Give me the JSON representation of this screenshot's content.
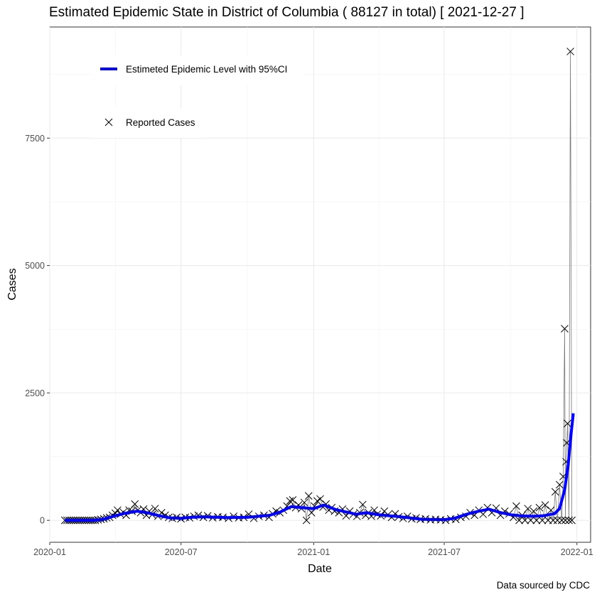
{
  "chart_data": {
    "type": "line",
    "title": "Estimated Epidemic State in District of Columbia ( 88127 in total)  [ 2021-12-27 ]",
    "xlabel": "Date",
    "ylabel": "Cases",
    "caption": "Data sourced by CDC",
    "grid": true,
    "legend_position": "top-left",
    "legend": [
      {
        "label": "Estimeted Epidemic Level with 95%CI",
        "kind": "line",
        "color": "#0000ff"
      },
      {
        "label": "Reported Cases",
        "kind": "point",
        "marker": "x",
        "color": "#000000"
      }
    ],
    "x_ticks": [
      "2020-01",
      "2020-07",
      "2021-01",
      "2021-07",
      "2022-01"
    ],
    "y_ticks": [
      "0",
      "2500",
      "5000",
      "7500"
    ],
    "ylim": [
      -430,
      9680
    ],
    "xlim": [
      "2020-01-01",
      "2022-01-20"
    ],
    "series": [
      {
        "name": "Estimeted Epidemic Level with 95%CI",
        "style": "line",
        "color": "#0000ff",
        "points": [
          [
            "2020-01-22",
            0
          ],
          [
            "2020-03-01",
            0
          ],
          [
            "2020-03-15",
            20
          ],
          [
            "2020-04-01",
            90
          ],
          [
            "2020-04-15",
            140
          ],
          [
            "2020-05-01",
            180
          ],
          [
            "2020-05-15",
            150
          ],
          [
            "2020-06-01",
            90
          ],
          [
            "2020-06-15",
            50
          ],
          [
            "2020-07-01",
            40
          ],
          [
            "2020-07-15",
            60
          ],
          [
            "2020-08-01",
            70
          ],
          [
            "2020-09-01",
            55
          ],
          [
            "2020-10-01",
            60
          ],
          [
            "2020-11-01",
            100
          ],
          [
            "2020-11-15",
            160
          ],
          [
            "2020-12-01",
            270
          ],
          [
            "2020-12-15",
            250
          ],
          [
            "2021-01-01",
            230
          ],
          [
            "2021-01-15",
            300
          ],
          [
            "2021-02-01",
            210
          ],
          [
            "2021-03-01",
            120
          ],
          [
            "2021-03-15",
            150
          ],
          [
            "2021-04-01",
            110
          ],
          [
            "2021-05-01",
            70
          ],
          [
            "2021-06-01",
            20
          ],
          [
            "2021-07-01",
            15
          ],
          [
            "2021-07-15",
            40
          ],
          [
            "2021-08-01",
            120
          ],
          [
            "2021-08-15",
            170
          ],
          [
            "2021-09-01",
            220
          ],
          [
            "2021-09-15",
            160
          ],
          [
            "2021-10-01",
            110
          ],
          [
            "2021-10-15",
            90
          ],
          [
            "2021-11-01",
            80
          ],
          [
            "2021-11-15",
            90
          ],
          [
            "2021-12-01",
            130
          ],
          [
            "2021-12-08",
            230
          ],
          [
            "2021-12-15",
            600
          ],
          [
            "2021-12-20",
            1100
          ],
          [
            "2021-12-24",
            1700
          ],
          [
            "2021-12-27",
            2100
          ]
        ]
      },
      {
        "name": "Reported Cases",
        "style": "points",
        "marker": "x",
        "color": "#000000",
        "points": [
          [
            "2020-01-22",
            0
          ],
          [
            "2020-01-25",
            0
          ],
          [
            "2020-01-28",
            0
          ],
          [
            "2020-01-31",
            0
          ],
          [
            "2020-02-03",
            0
          ],
          [
            "2020-02-06",
            0
          ],
          [
            "2020-02-09",
            0
          ],
          [
            "2020-02-12",
            0
          ],
          [
            "2020-02-15",
            0
          ],
          [
            "2020-02-18",
            0
          ],
          [
            "2020-02-21",
            0
          ],
          [
            "2020-02-24",
            0
          ],
          [
            "2020-02-27",
            0
          ],
          [
            "2020-03-01",
            0
          ],
          [
            "2020-03-04",
            0
          ],
          [
            "2020-03-08",
            10
          ],
          [
            "2020-03-12",
            20
          ],
          [
            "2020-03-16",
            30
          ],
          [
            "2020-03-20",
            50
          ],
          [
            "2020-03-24",
            60
          ],
          [
            "2020-03-28",
            100
          ],
          [
            "2020-04-01",
            140
          ],
          [
            "2020-04-04",
            200
          ],
          [
            "2020-04-08",
            120
          ],
          [
            "2020-04-12",
            160
          ],
          [
            "2020-04-16",
            100
          ],
          [
            "2020-04-20",
            200
          ],
          [
            "2020-04-24",
            180
          ],
          [
            "2020-04-28",
            320
          ],
          [
            "2020-05-02",
            200
          ],
          [
            "2020-05-06",
            150
          ],
          [
            "2020-05-10",
            220
          ],
          [
            "2020-05-14",
            100
          ],
          [
            "2020-05-18",
            180
          ],
          [
            "2020-05-22",
            110
          ],
          [
            "2020-05-26",
            230
          ],
          [
            "2020-05-30",
            80
          ],
          [
            "2020-06-04",
            150
          ],
          [
            "2020-06-09",
            100
          ],
          [
            "2020-06-14",
            60
          ],
          [
            "2020-06-19",
            40
          ],
          [
            "2020-06-25",
            60
          ],
          [
            "2020-07-01",
            30
          ],
          [
            "2020-07-07",
            60
          ],
          [
            "2020-07-13",
            50
          ],
          [
            "2020-07-19",
            80
          ],
          [
            "2020-07-25",
            100
          ],
          [
            "2020-08-01",
            60
          ],
          [
            "2020-08-07",
            90
          ],
          [
            "2020-08-14",
            50
          ],
          [
            "2020-08-21",
            70
          ],
          [
            "2020-08-28",
            60
          ],
          [
            "2020-09-05",
            40
          ],
          [
            "2020-09-12",
            80
          ],
          [
            "2020-09-19",
            50
          ],
          [
            "2020-09-26",
            60
          ],
          [
            "2020-10-03",
            120
          ],
          [
            "2020-10-10",
            40
          ],
          [
            "2020-10-17",
            80
          ],
          [
            "2020-10-24",
            100
          ],
          [
            "2020-10-31",
            60
          ],
          [
            "2020-11-05",
            130
          ],
          [
            "2020-11-10",
            180
          ],
          [
            "2020-11-15",
            150
          ],
          [
            "2020-11-20",
            200
          ],
          [
            "2020-11-25",
            280
          ],
          [
            "2020-11-29",
            380
          ],
          [
            "2020-12-03",
            400
          ],
          [
            "2020-12-07",
            250
          ],
          [
            "2020-12-11",
            300
          ],
          [
            "2020-12-15",
            230
          ],
          [
            "2020-12-19",
            350
          ],
          [
            "2020-12-22",
            0
          ],
          [
            "2020-12-25",
            480
          ],
          [
            "2020-12-29",
            150
          ],
          [
            "2021-01-02",
            280
          ],
          [
            "2021-01-06",
            380
          ],
          [
            "2021-01-10",
            420
          ],
          [
            "2021-01-14",
            260
          ],
          [
            "2021-01-18",
            320
          ],
          [
            "2021-01-22",
            200
          ],
          [
            "2021-01-26",
            250
          ],
          [
            "2021-01-30",
            180
          ],
          [
            "2021-02-05",
            150
          ],
          [
            "2021-02-10",
            220
          ],
          [
            "2021-02-15",
            90
          ],
          [
            "2021-02-20",
            180
          ],
          [
            "2021-02-25",
            120
          ],
          [
            "2021-03-02",
            80
          ],
          [
            "2021-03-06",
            150
          ],
          [
            "2021-03-10",
            310
          ],
          [
            "2021-03-14",
            100
          ],
          [
            "2021-03-18",
            150
          ],
          [
            "2021-03-22",
            80
          ],
          [
            "2021-03-26",
            200
          ],
          [
            "2021-03-30",
            120
          ],
          [
            "2021-04-04",
            90
          ],
          [
            "2021-04-09",
            180
          ],
          [
            "2021-04-14",
            110
          ],
          [
            "2021-04-19",
            60
          ],
          [
            "2021-04-24",
            130
          ],
          [
            "2021-04-29",
            70
          ],
          [
            "2021-05-05",
            40
          ],
          [
            "2021-05-11",
            80
          ],
          [
            "2021-05-17",
            30
          ],
          [
            "2021-05-23",
            50
          ],
          [
            "2021-05-29",
            20
          ],
          [
            "2021-06-05",
            30
          ],
          [
            "2021-06-12",
            10
          ],
          [
            "2021-06-19",
            20
          ],
          [
            "2021-06-26",
            10
          ],
          [
            "2021-07-03",
            0
          ],
          [
            "2021-07-10",
            30
          ],
          [
            "2021-07-17",
            20
          ],
          [
            "2021-07-24",
            60
          ],
          [
            "2021-07-31",
            80
          ],
          [
            "2021-08-06",
            150
          ],
          [
            "2021-08-12",
            100
          ],
          [
            "2021-08-18",
            200
          ],
          [
            "2021-08-24",
            120
          ],
          [
            "2021-08-30",
            250
          ],
          [
            "2021-09-05",
            150
          ],
          [
            "2021-09-11",
            240
          ],
          [
            "2021-09-17",
            100
          ],
          [
            "2021-09-23",
            180
          ],
          [
            "2021-09-29",
            130
          ],
          [
            "2021-10-05",
            60
          ],
          [
            "2021-10-09",
            280
          ],
          [
            "2021-10-13",
            0
          ],
          [
            "2021-10-17",
            100
          ],
          [
            "2021-10-21",
            0
          ],
          [
            "2021-10-25",
            230
          ],
          [
            "2021-10-29",
            0
          ],
          [
            "2021-11-02",
            180
          ],
          [
            "2021-11-06",
            0
          ],
          [
            "2021-11-10",
            250
          ],
          [
            "2021-11-14",
            0
          ],
          [
            "2021-11-18",
            300
          ],
          [
            "2021-11-22",
            0
          ],
          [
            "2021-11-26",
            200
          ],
          [
            "2021-11-29",
            0
          ],
          [
            "2021-12-02",
            560
          ],
          [
            "2021-12-05",
            0
          ],
          [
            "2021-12-08",
            700
          ],
          [
            "2021-12-11",
            0
          ],
          [
            "2021-12-13",
            860
          ],
          [
            "2021-12-15",
            3760
          ],
          [
            "2021-12-16",
            0
          ],
          [
            "2021-12-17",
            1150
          ],
          [
            "2021-12-18",
            1520
          ],
          [
            "2021-12-19",
            1900
          ],
          [
            "2021-12-21",
            0
          ],
          [
            "2021-12-23",
            9200
          ],
          [
            "2021-12-25",
            0
          ]
        ]
      }
    ]
  }
}
